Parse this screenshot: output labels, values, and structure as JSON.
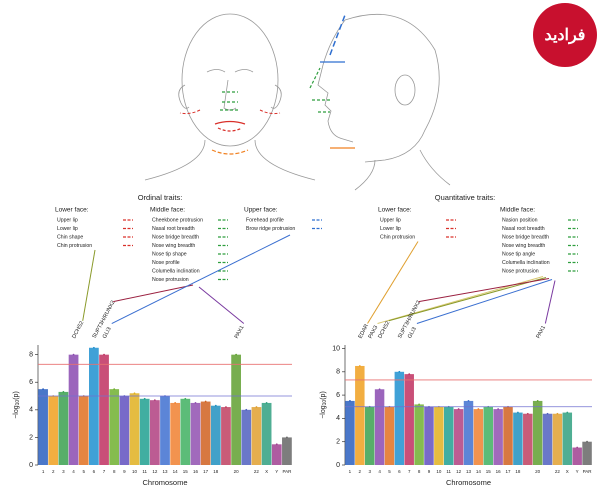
{
  "watermark": "فرادید",
  "chart_data": [
    {
      "type": "manhattan",
      "title": "Ordinal traits:",
      "trait_groups": [
        {
          "title": "Lower face:",
          "color": "#d9302a",
          "items": [
            "Upper lip",
            "Lower lip",
            "Chin shape",
            "Chin protrusion"
          ]
        },
        {
          "title": "Middle face:",
          "color": "#2e9e3e",
          "items": [
            "Cheekbone protrusion",
            "Nasal root breadth",
            "Nose bridge breadth",
            "Nose wing breadth",
            "Nose tip shape",
            "Nose profile",
            "Columella inclination",
            "Nose protrusion"
          ]
        },
        {
          "title": "Upper face:",
          "color": "#2f6fd0",
          "items": [
            "Forehead profile",
            "Brow ridge protrusion"
          ]
        }
      ],
      "annotations": [
        {
          "label": "DCHS2",
          "chromosome": "4",
          "color": "#8a9a2a"
        },
        {
          "label": "SUPT3H/RUNX2",
          "chromosome": "6",
          "color": "#9a2040"
        },
        {
          "label": "GLI3",
          "chromosome": "7",
          "color": "#3a6fd0"
        },
        {
          "label": "PAX1",
          "chromosome": "20",
          "color": "#7a3aa0"
        }
      ],
      "y_label": {
        "main": "−log",
        "sub": "10",
        "rest": "(p)"
      },
      "x_label": "Chromosome",
      "categories": [
        "1",
        "2",
        "3",
        "4",
        "5",
        "6",
        "7",
        "8",
        "9",
        "10",
        "11",
        "12",
        "13",
        "14",
        "15",
        "16",
        "17",
        "18",
        null,
        "20",
        null,
        "22",
        "X",
        "Y",
        "PAR"
      ],
      "values": [
        5.5,
        5.0,
        5.3,
        8.0,
        5.0,
        8.5,
        8.0,
        5.5,
        5.0,
        5.2,
        4.8,
        4.7,
        5.0,
        4.5,
        4.8,
        4.5,
        4.6,
        4.3,
        4.2,
        8.0,
        4.0,
        4.2,
        4.5,
        1.5,
        2.0
      ],
      "colors": [
        "#2a5fc0",
        "#f0a020",
        "#3aa050",
        "#8a4ab0",
        "#e07020",
        "#1e90d0",
        "#c03060",
        "#70b030",
        "#6050c0",
        "#e0b020",
        "#20a090",
        "#b04080",
        "#4070d0",
        "#f08030",
        "#40b060",
        "#9050b0",
        "#d06020",
        "#2090c0",
        "#c04060",
        "#60a030",
        "#5060c0",
        "#e0a030",
        "#30a080",
        "#a04090",
        "#666666"
      ],
      "ylim": [
        0,
        8.7
      ],
      "yticks": [
        0,
        2,
        4,
        6,
        8
      ],
      "thresholds": [
        {
          "value": 7.3,
          "color": "#e87070"
        },
        {
          "value": 5,
          "color": "#7070d0"
        }
      ]
    },
    {
      "type": "manhattan",
      "title": "Quantitative traits:",
      "trait_groups": [
        {
          "title": "Lower face:",
          "color": "#d9302a",
          "items": [
            "Upper lip",
            "Lower lip",
            "Chin protrusion"
          ]
        },
        {
          "title": "Middle face:",
          "color": "#2e9e3e",
          "items": [
            "Nasion position",
            "Nasal root breadth",
            "Nose bridge breadth",
            "Nose wing breadth",
            "Nose tip angle",
            "Columella inclination",
            "Nose protrusion"
          ]
        }
      ],
      "annotations": [
        {
          "label": "EDAR",
          "chromosome": "2",
          "color": "#e0a030"
        },
        {
          "label": "PAX3",
          "chromosome": "2",
          "color": "#d8c870"
        },
        {
          "label": "DCHS2",
          "chromosome": "4",
          "color": "#8a9a2a"
        },
        {
          "label": "SUPT3H/RUNX2",
          "chromosome": "6",
          "color": "#9a2040"
        },
        {
          "label": "GLI3",
          "chromosome": "7",
          "color": "#3a6fd0"
        },
        {
          "label": "PAX1",
          "chromosome": "20",
          "color": "#7a3aa0"
        }
      ],
      "y_label": {
        "main": "−log",
        "sub": "10",
        "rest": "(p)"
      },
      "x_label": "Chromosome",
      "categories": [
        "1",
        "2",
        "3",
        "4",
        "5",
        "6",
        "7",
        "8",
        "9",
        "10",
        "11",
        "12",
        "13",
        "14",
        "15",
        "16",
        "17",
        "18",
        null,
        "20",
        null,
        "22",
        "X",
        "Y",
        "PAR"
      ],
      "values": [
        5.5,
        8.5,
        5.0,
        6.5,
        5.0,
        8.0,
        7.8,
        5.2,
        5.0,
        5.0,
        5.0,
        4.8,
        5.5,
        4.8,
        5.0,
        4.8,
        5.0,
        4.5,
        4.4,
        5.5,
        4.4,
        4.4,
        4.5,
        1.5,
        2.0
      ],
      "colors": [
        "#2a5fc0",
        "#f0a020",
        "#3aa050",
        "#8a4ab0",
        "#e07020",
        "#1e90d0",
        "#c03060",
        "#70b030",
        "#6050c0",
        "#e0b020",
        "#20a090",
        "#b04080",
        "#4070d0",
        "#f08030",
        "#40b060",
        "#9050b0",
        "#d06020",
        "#2090c0",
        "#c04060",
        "#60a030",
        "#5060c0",
        "#e0a030",
        "#30a080",
        "#a04090",
        "#666666"
      ],
      "ylim": [
        0,
        10.3
      ],
      "yticks": [
        0,
        2,
        4,
        6,
        8,
        10
      ],
      "thresholds": [
        {
          "value": 7.3,
          "color": "#e87070"
        },
        {
          "value": 5,
          "color": "#7070d0"
        }
      ]
    }
  ]
}
